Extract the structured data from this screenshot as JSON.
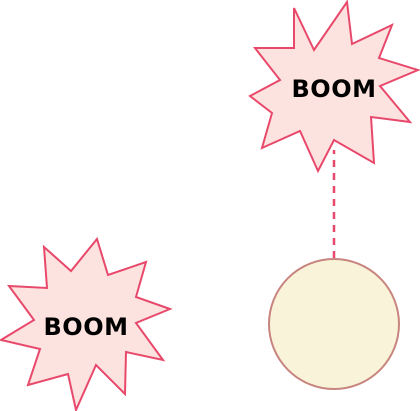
{
  "diagram": {
    "explosion_top": {
      "label": "BOOM",
      "fill": "#fde3df",
      "stroke": "#e8496b"
    },
    "explosion_bottom": {
      "label": "BOOM",
      "fill": "#fde3df",
      "stroke": "#e8496b"
    },
    "ball": {
      "fill": "#f9f4d9",
      "stroke": "#c8857f"
    },
    "fuse": {
      "stroke": "#e8496b",
      "style": "dashed"
    }
  }
}
